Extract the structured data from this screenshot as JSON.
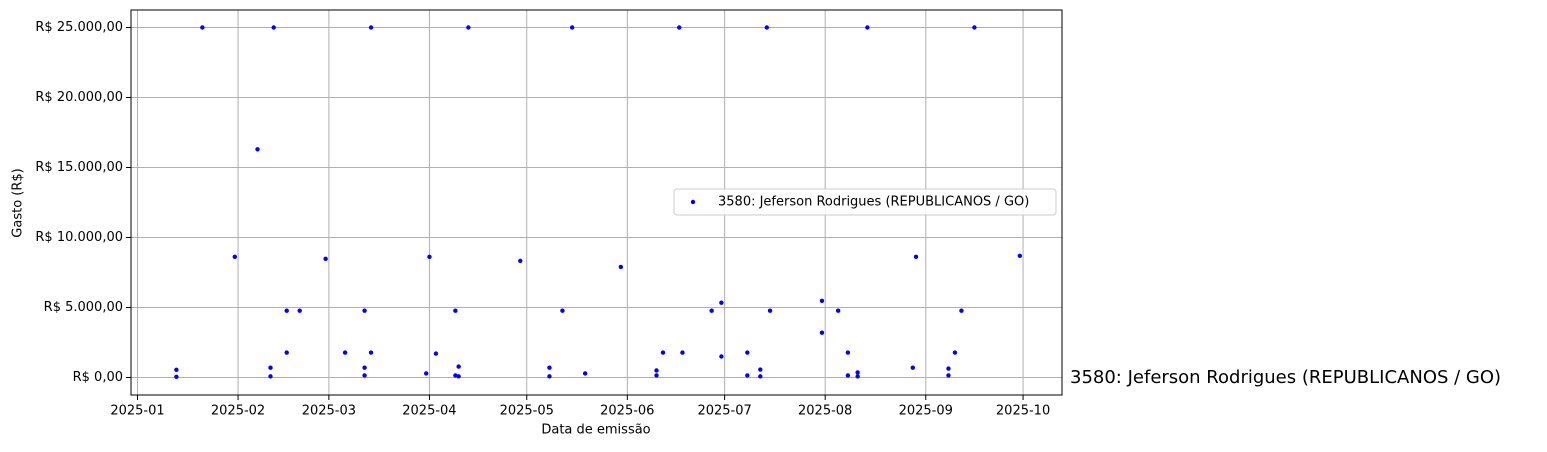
{
  "chart_data": {
    "type": "scatter",
    "xlabel": "Data de emissão",
    "ylabel": "Gasto (R$)",
    "annotation": "3580: Jeferson Rodrigues (REPUBLICANOS / GO)",
    "legend": "center right",
    "grid": true,
    "xlim": [
      "2024-12-30",
      "2025-10-13"
    ],
    "xticks": [
      {
        "value": "2025-01-01",
        "label": "2025-01"
      },
      {
        "value": "2025-02-01",
        "label": "2025-02"
      },
      {
        "value": "2025-03-01",
        "label": "2025-03"
      },
      {
        "value": "2025-04-01",
        "label": "2025-04"
      },
      {
        "value": "2025-05-01",
        "label": "2025-05"
      },
      {
        "value": "2025-06-01",
        "label": "2025-06"
      },
      {
        "value": "2025-07-01",
        "label": "2025-07"
      },
      {
        "value": "2025-08-01",
        "label": "2025-08"
      },
      {
        "value": "2025-09-01",
        "label": "2025-09"
      },
      {
        "value": "2025-10-01",
        "label": "2025-10"
      }
    ],
    "ylim": [
      -1250,
      26250
    ],
    "yticks": [
      {
        "value": 0,
        "label": "R$ 0,00"
      },
      {
        "value": 5000,
        "label": "R$ 5.000,00"
      },
      {
        "value": 10000,
        "label": "R$ 10.000,00"
      },
      {
        "value": 15000,
        "label": "R$ 15.000,00"
      },
      {
        "value": 20000,
        "label": "R$ 20.000,00"
      },
      {
        "value": 25000,
        "label": "R$ 25.000,00"
      }
    ],
    "series": [
      {
        "name": "3580: Jeferson Rodrigues (REPUBLICANOS / GO)",
        "color": "#0000ff",
        "x": [
          "2025-01-13",
          "2025-01-13",
          "2025-01-21",
          "2025-01-31",
          "2025-02-07",
          "2025-02-11",
          "2025-02-11",
          "2025-02-12",
          "2025-02-16",
          "2025-02-16",
          "2025-02-20",
          "2025-02-28",
          "2025-03-06",
          "2025-03-12",
          "2025-03-12",
          "2025-03-12",
          "2025-03-14",
          "2025-03-14",
          "2025-03-31",
          "2025-04-01",
          "2025-04-03",
          "2025-04-09",
          "2025-04-09",
          "2025-04-10",
          "2025-04-10",
          "2025-04-13",
          "2025-04-29",
          "2025-05-08",
          "2025-05-08",
          "2025-05-12",
          "2025-05-15",
          "2025-05-19",
          "2025-05-30",
          "2025-06-10",
          "2025-06-10",
          "2025-06-12",
          "2025-06-17",
          "2025-06-18",
          "2025-06-27",
          "2025-06-30",
          "2025-06-30",
          "2025-07-08",
          "2025-07-08",
          "2025-07-12",
          "2025-07-12",
          "2025-07-14",
          "2025-07-15",
          "2025-07-31",
          "2025-07-31",
          "2025-08-05",
          "2025-08-08",
          "2025-08-08",
          "2025-08-11",
          "2025-08-11",
          "2025-08-14",
          "2025-08-28",
          "2025-08-29",
          "2025-09-08",
          "2025-09-08",
          "2025-09-10",
          "2025-09-12",
          "2025-09-16",
          "2025-09-30"
        ],
        "values": [
          550,
          50,
          25000,
          8620,
          16300,
          700,
          80,
          25000,
          4770,
          1780,
          4770,
          8480,
          1780,
          4770,
          700,
          150,
          25000,
          1780,
          290,
          8620,
          1710,
          4770,
          150,
          780,
          80,
          25000,
          8330,
          700,
          80,
          4770,
          25000,
          290,
          7900,
          500,
          150,
          1780,
          25000,
          1780,
          4770,
          5340,
          1500,
          1780,
          150,
          570,
          80,
          25000,
          4770,
          5480,
          3200,
          4770,
          1780,
          150,
          360,
          80,
          25000,
          700,
          8620,
          640,
          150,
          1780,
          4770,
          25000,
          8690
        ]
      }
    ]
  }
}
